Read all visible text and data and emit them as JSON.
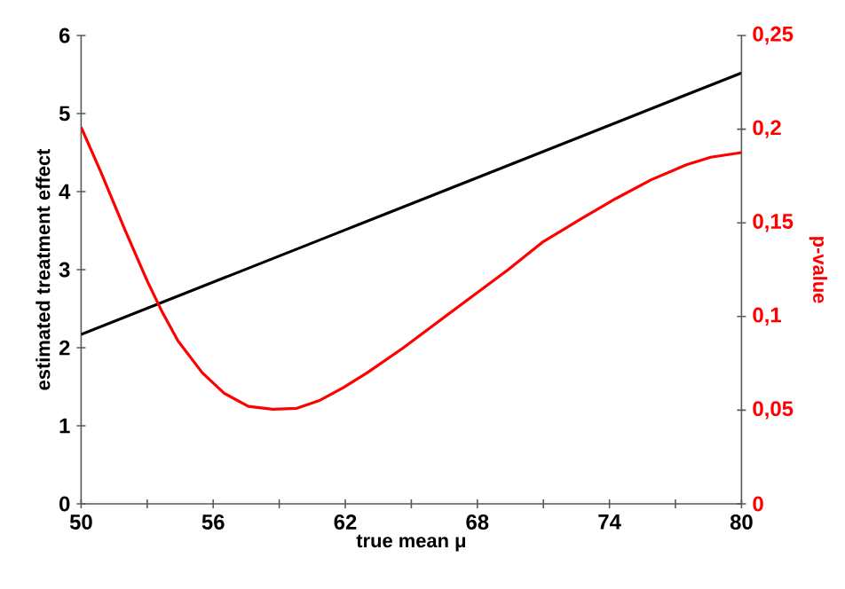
{
  "chart_data": {
    "type": "line",
    "xlabel": "true mean μ",
    "ylabel": "estimated treatment effect",
    "y2label": "p-value",
    "xlim": [
      50,
      80
    ],
    "ylim": [
      0,
      6
    ],
    "y2lim": [
      0,
      0.25
    ],
    "xticks": [
      50,
      {
        "value": 53,
        "label": null
      },
      56,
      {
        "value": 59,
        "label": null
      },
      62,
      {
        "value": 65,
        "label": null
      },
      68,
      {
        "value": 71,
        "label": null
      },
      74,
      {
        "value": 77,
        "label": null
      },
      80
    ],
    "yticks": [
      0,
      1,
      2,
      3,
      4,
      5,
      6
    ],
    "y2ticks": [
      0,
      {
        "value": 0.05,
        "label": "0,05"
      },
      {
        "value": 0.1,
        "label": "0,1"
      },
      {
        "value": 0.15,
        "label": "0,15"
      },
      {
        "value": 0.2,
        "label": "0,2"
      },
      {
        "value": 0.25,
        "label": "0,25"
      }
    ],
    "series": [
      {
        "color": "#000000",
        "x": [
          50,
          56,
          62,
          68,
          74,
          80
        ],
        "values": [
          2.17,
          2.84,
          3.51,
          4.18,
          4.85,
          5.52
        ]
      },
      {
        "color": "#ff0000",
        "axis": "y2",
        "x": [
          50,
          50.9,
          52.0,
          53.0,
          53.7,
          54.4,
          55.5,
          56.5,
          57.6,
          58.7,
          59.8,
          60.8,
          61.9,
          63.0,
          64.6,
          66.2,
          67.8,
          69.4,
          71.0,
          72.7,
          74.3,
          75.9,
          77.5,
          78.6,
          80
        ],
        "values": [
          0.201,
          0.177,
          0.146,
          0.119,
          0.102,
          0.087,
          0.07,
          0.059,
          0.052,
          0.0505,
          0.051,
          0.055,
          0.062,
          0.07,
          0.083,
          0.097,
          0.111,
          0.125,
          0.14,
          0.152,
          0.163,
          0.173,
          0.181,
          0.185,
          0.1875
        ]
      }
    ]
  }
}
